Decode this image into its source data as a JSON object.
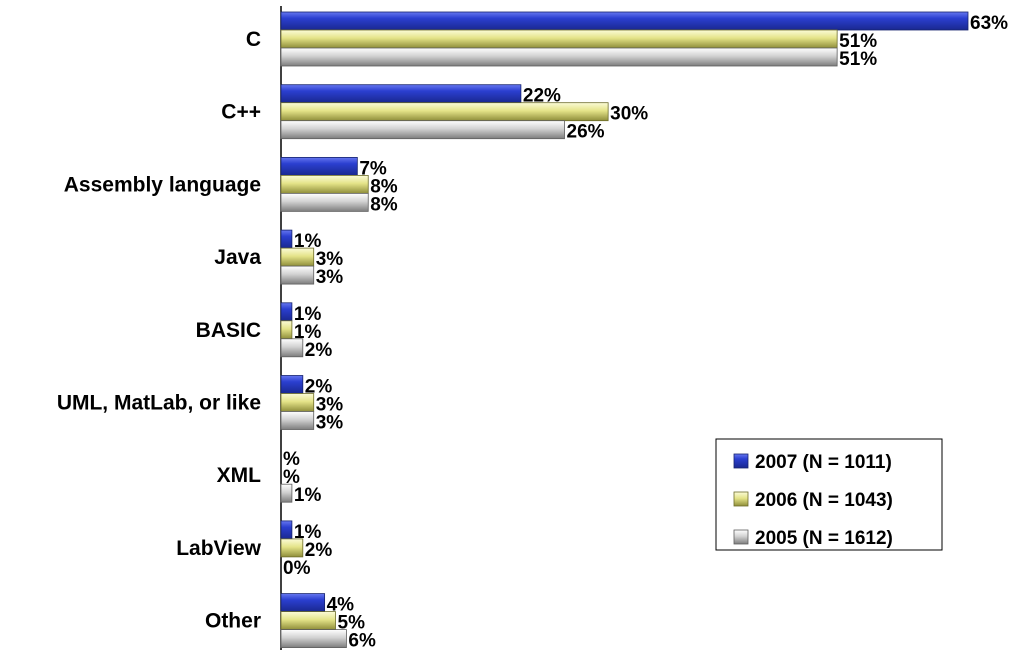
{
  "chart_data": {
    "type": "bar",
    "orientation": "horizontal",
    "categories": [
      "C",
      "C++",
      "Assembly language",
      "Java",
      "BASIC",
      "UML, MatLab, or like",
      "XML",
      "LabView",
      "Other"
    ],
    "series": [
      {
        "name": "2007 (N = 1011)",
        "color": "#2b3fd0",
        "values": [
          63,
          22,
          7,
          1,
          1,
          2,
          null,
          1,
          4
        ],
        "labels": [
          "63%",
          "22%",
          "7%",
          "1%",
          "1%",
          "2%",
          "%",
          "1%",
          "4%"
        ]
      },
      {
        "name": "2006 (N = 1043)",
        "color": "#e4e388",
        "values": [
          51,
          30,
          8,
          3,
          1,
          3,
          null,
          2,
          5
        ],
        "labels": [
          "51%",
          "30%",
          "8%",
          "3%",
          "1%",
          "3%",
          "%",
          "2%",
          "5%"
        ]
      },
      {
        "name": "2005 (N = 1612)",
        "color": "#c9c9c9",
        "values": [
          51,
          26,
          8,
          3,
          2,
          3,
          1,
          0,
          6
        ],
        "labels": [
          "51%",
          "26%",
          "8%",
          "3%",
          "2%",
          "3%",
          "1%",
          "0%",
          "6%"
        ]
      }
    ],
    "xlim": [
      0,
      63
    ],
    "legend_position": "bottom-right",
    "grid": false
  }
}
